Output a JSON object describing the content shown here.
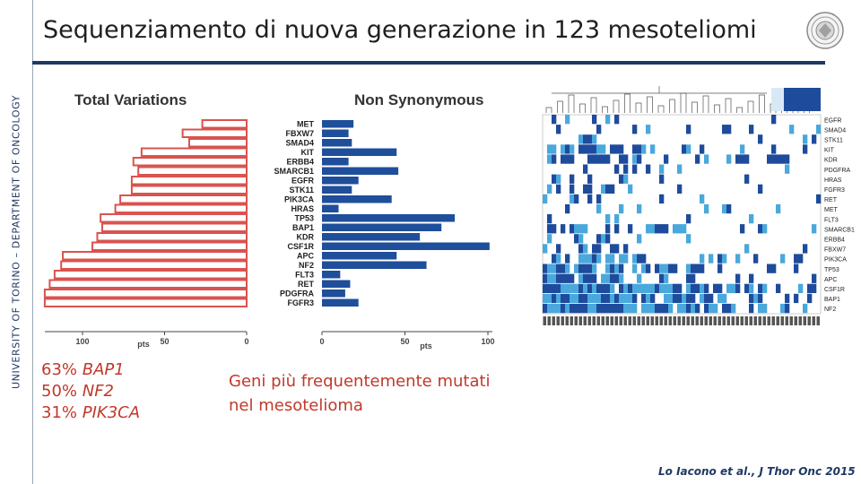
{
  "sidebar": {
    "label": "UNIVERSITY OF TORINO – DEPARTMENT OF ONCOLOGY"
  },
  "slide": {
    "title": "Sequenziamento di nuova generazione in 123 mesoteliomi"
  },
  "left_text": {
    "lines": [
      {
        "pct": "63% ",
        "gene": "BAP1"
      },
      {
        "pct": "50% ",
        "gene": "NF2"
      },
      {
        "pct": "31% ",
        "gene": "PIK3CA"
      }
    ]
  },
  "middle_text": {
    "line1": "Geni più frequentemente mutati",
    "line2": "nel mesotelioma"
  },
  "citation": "Lo Iacono et al., J Thor Onc 2015",
  "colors": {
    "accent_red": "#c0392b",
    "total_bar_stroke": "#d9534f",
    "nonsyn_bar": "#1f4e9a",
    "heat_dark": "#1e4b9b",
    "heat_light": "#4aa8dc",
    "navy": "#1f3864"
  },
  "chart_data": [
    {
      "type": "bar",
      "orientation": "horizontal",
      "direction": "right-to-left",
      "title": "Total Variations",
      "xlabel": "pts",
      "ticks": [
        100,
        50,
        0
      ],
      "xlim": [
        0,
        125
      ],
      "categories": [
        "MET",
        "FBXW7",
        "SMAD4",
        "KIT",
        "ERBB4",
        "SMARCB1",
        "EGFR",
        "STK11",
        "PIK3CA",
        "HRAS",
        "TP53",
        "BAP1",
        "KDR",
        "CSF1R",
        "APC",
        "NF2",
        "FLT3",
        "RET",
        "PDGFRA",
        "FGFR3"
      ],
      "values": [
        27,
        39,
        35,
        64,
        69,
        66,
        70,
        70,
        77,
        80,
        89,
        88,
        91,
        94,
        112,
        113,
        117,
        120,
        123,
        123
      ]
    },
    {
      "type": "bar",
      "orientation": "horizontal",
      "title": "Non Synonymous",
      "xlabel": "pts",
      "ticks": [
        0,
        50,
        100
      ],
      "xlim": [
        0,
        100
      ],
      "categories": [
        "MET",
        "FBXW7",
        "SMAD4",
        "KIT",
        "ERBB4",
        "SMARCB1",
        "EGFR",
        "STK11",
        "PIK3CA",
        "HRAS",
        "TP53",
        "BAP1",
        "KDR",
        "CSF1R",
        "APC",
        "NF2",
        "FLT3",
        "RET",
        "PDGFRA",
        "FGFR3"
      ],
      "values": [
        19,
        16,
        18,
        45,
        16,
        46,
        22,
        18,
        42,
        10,
        80,
        72,
        59,
        101,
        45,
        63,
        11,
        17,
        14,
        22
      ]
    },
    {
      "type": "heatmap",
      "rows": [
        "EGFR",
        "SMAD4",
        "STK11",
        "KIT",
        "KDR",
        "PDGFRA",
        "HRAS",
        "FGFR3",
        "RET",
        "MET",
        "FLT3",
        "SMARCB1",
        "ERBB4",
        "FBXW7",
        "PIK3CA",
        "TP53",
        "APC",
        "CSF1R",
        "BAP1",
        "NF2"
      ]
    }
  ]
}
